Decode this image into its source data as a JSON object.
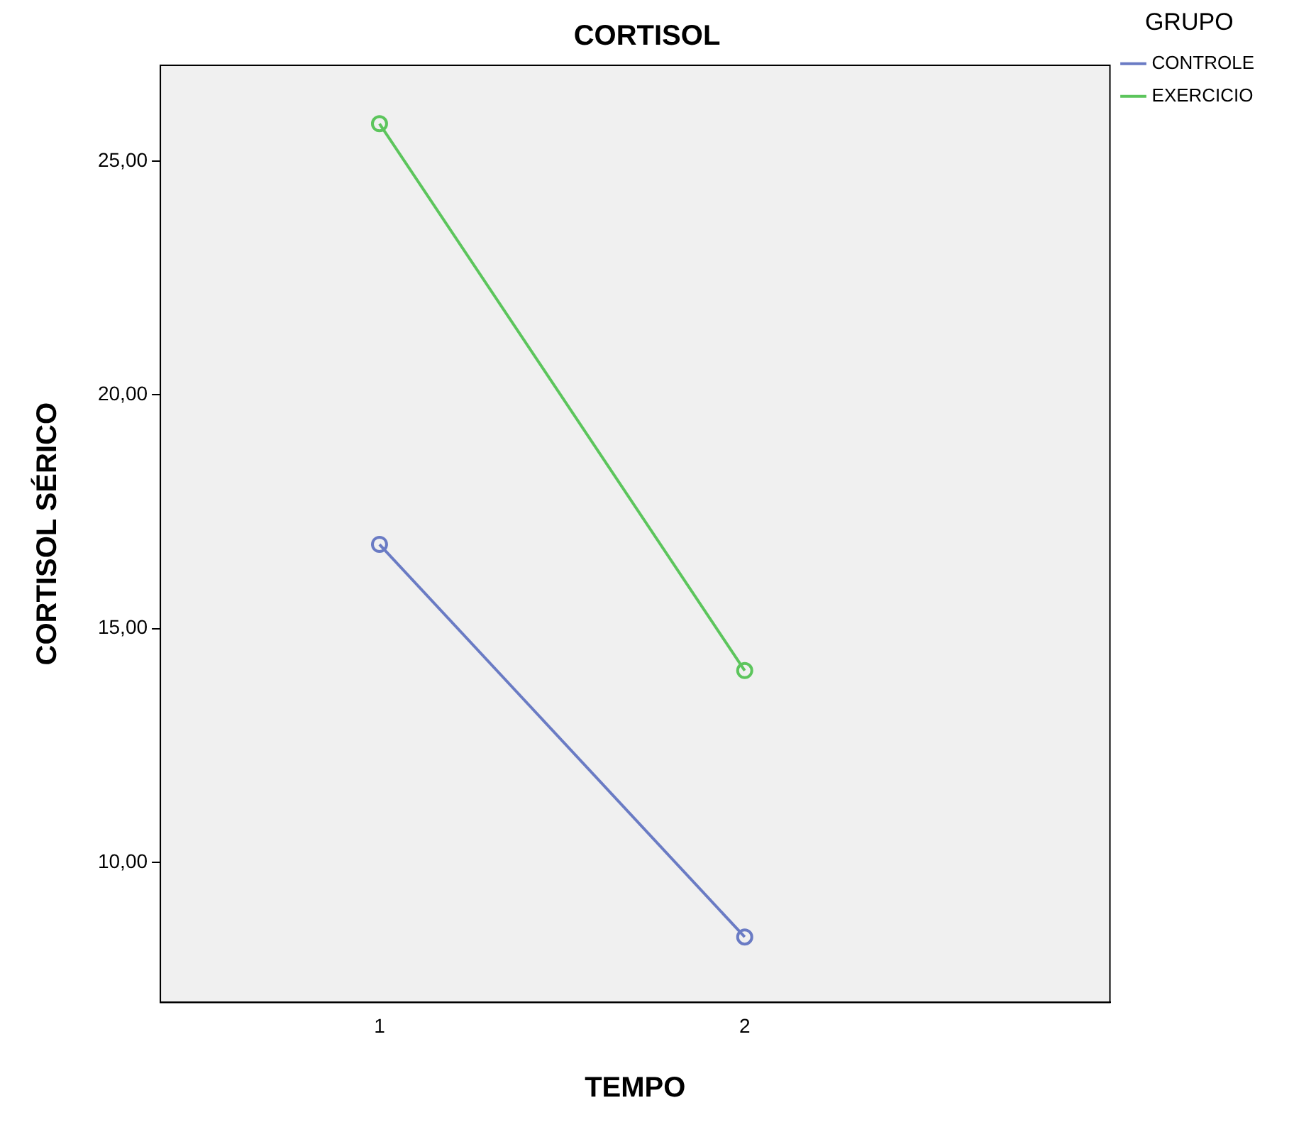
{
  "chart_data": {
    "type": "line",
    "title": "CORTISOL",
    "xlabel": "TEMPO",
    "ylabel": "CORTISOL SÉRICO",
    "legend_title": "GRUPO",
    "x": [
      1,
      2
    ],
    "series": [
      {
        "name": "CONTROLE",
        "color": "#6a7bc4",
        "values": [
          16.8,
          8.4
        ]
      },
      {
        "name": "EXERCICIO",
        "color": "#5cc55c",
        "values": [
          25.8,
          14.1
        ]
      }
    ],
    "xlim": [
      0.4,
      3
    ],
    "xticks": [
      1,
      2
    ],
    "ylim": [
      7,
      27.05
    ],
    "yticks": [
      {
        "value": 10,
        "label": "10,00"
      },
      {
        "value": 15,
        "label": "15,00"
      },
      {
        "value": 20,
        "label": "20,00"
      },
      {
        "value": 25,
        "label": "25,00"
      }
    ],
    "grid": false,
    "legend": "top right",
    "marker": "circle",
    "line_style": "solid"
  }
}
